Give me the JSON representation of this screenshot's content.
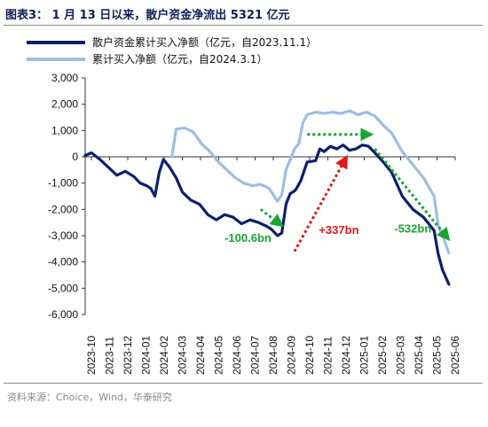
{
  "title": "图表3：  1 月 13 日以来，散户资金净流出 5321 亿元",
  "source": "资料来源：Choice，Wind，华泰研究",
  "colors": {
    "dark_series": "#0d1f6b",
    "light_series": "#9cbfe3",
    "green_arrow": "#1aa332",
    "red_arrow": "#e01818"
  },
  "chart_data": {
    "type": "line",
    "title": "图表3：  1 月 13 日以来，散户资金净流出 5321 亿元",
    "xlabel": "",
    "ylabel": "",
    "ylim": [
      -6000,
      3000
    ],
    "yticks": [
      "3,000",
      "2,000",
      "1,000",
      "0",
      "-1,000",
      "-2,000",
      "-3,000",
      "-4,000",
      "-5,000",
      "-6,000"
    ],
    "ytick_values": [
      3000,
      2000,
      1000,
      0,
      -1000,
      -2000,
      -3000,
      -4000,
      -5000,
      -6000
    ],
    "x_categories": [
      "2023-10",
      "2023-11",
      "2023-12",
      "2024-01",
      "2024-02",
      "2024-03",
      "2024-04",
      "2024-05",
      "2024-06",
      "2024-07",
      "2024-08",
      "2024-09",
      "2024-10",
      "2024-11",
      "2024-12",
      "2025-01",
      "2025-02",
      "2025-03",
      "2025-04",
      "2025-05",
      "2025-06"
    ],
    "grid": false,
    "legend_position": "top-left",
    "series": [
      {
        "name": "散户资金累计买入净额（亿元，自2023.11.1）",
        "color": "#0d1f6b",
        "x": [
          2023.75,
          2023.78,
          2023.82,
          2023.86,
          2023.9,
          2023.94,
          2023.98,
          2024.01,
          2024.04,
          2024.06,
          2024.08,
          2024.1,
          2024.12,
          2024.15,
          2024.18,
          2024.21,
          2024.25,
          2024.29,
          2024.33,
          2024.37,
          2024.41,
          2024.45,
          2024.49,
          2024.53,
          2024.57,
          2024.61,
          2024.63,
          2024.66,
          2024.68,
          2024.7,
          2024.72,
          2024.74,
          2024.75,
          2024.77,
          2024.8,
          2024.84,
          2024.86,
          2024.88,
          2024.91,
          2024.94,
          2024.97,
          2025.0,
          2025.03,
          2025.06,
          2025.09,
          2025.12,
          2025.16,
          2025.2,
          2025.25,
          2025.3,
          2025.35,
          2025.4,
          2025.42,
          2025.44,
          2025.47
        ],
        "y": [
          50,
          150,
          -100,
          -400,
          -700,
          -550,
          -750,
          -1000,
          -1100,
          -1200,
          -1500,
          -600,
          -100,
          -400,
          -800,
          -1350,
          -1650,
          -1800,
          -2200,
          -2400,
          -2200,
          -2300,
          -2550,
          -2400,
          -2500,
          -2650,
          -2750,
          -3000,
          -2900,
          -1800,
          -1400,
          -1300,
          -1200,
          -900,
          -200,
          -150,
          300,
          200,
          400,
          300,
          450,
          250,
          300,
          450,
          400,
          150,
          -200,
          -600,
          -1500,
          -2000,
          -2300,
          -2800,
          -3700,
          -4300,
          -4850
        ]
      },
      {
        "name": "累计买入净额（亿元，自2024.3.1）",
        "color": "#9cbfe3",
        "x": [
          2024.16,
          2024.18,
          2024.22,
          2024.26,
          2024.3,
          2024.34,
          2024.38,
          2024.42,
          2024.46,
          2024.5,
          2024.54,
          2024.58,
          2024.62,
          2024.66,
          2024.68,
          2024.7,
          2024.72,
          2024.74,
          2024.76,
          2024.78,
          2024.8,
          2024.84,
          2024.88,
          2024.92,
          2024.96,
          2025.0,
          2025.04,
          2025.08,
          2025.12,
          2025.16,
          2025.2,
          2025.25,
          2025.3,
          2025.35,
          2025.4,
          2025.42,
          2025.44,
          2025.47
        ],
        "y": [
          0,
          1050,
          1100,
          950,
          500,
          200,
          -200,
          -500,
          -800,
          -1000,
          -1100,
          -1050,
          -1200,
          -1700,
          -1450,
          -500,
          -100,
          300,
          500,
          1300,
          1600,
          1700,
          1650,
          1700,
          1650,
          1750,
          1600,
          1700,
          1550,
          1200,
          900,
          200,
          -300,
          -800,
          -1500,
          -2600,
          -3000,
          -3650
        ]
      }
    ],
    "annotations": [
      {
        "text": "-100.6bn",
        "color": "#1aa332"
      },
      {
        "text": "+337bn",
        "color": "#e01818"
      },
      {
        "text": "-532bn",
        "color": "#1aa332"
      }
    ]
  }
}
